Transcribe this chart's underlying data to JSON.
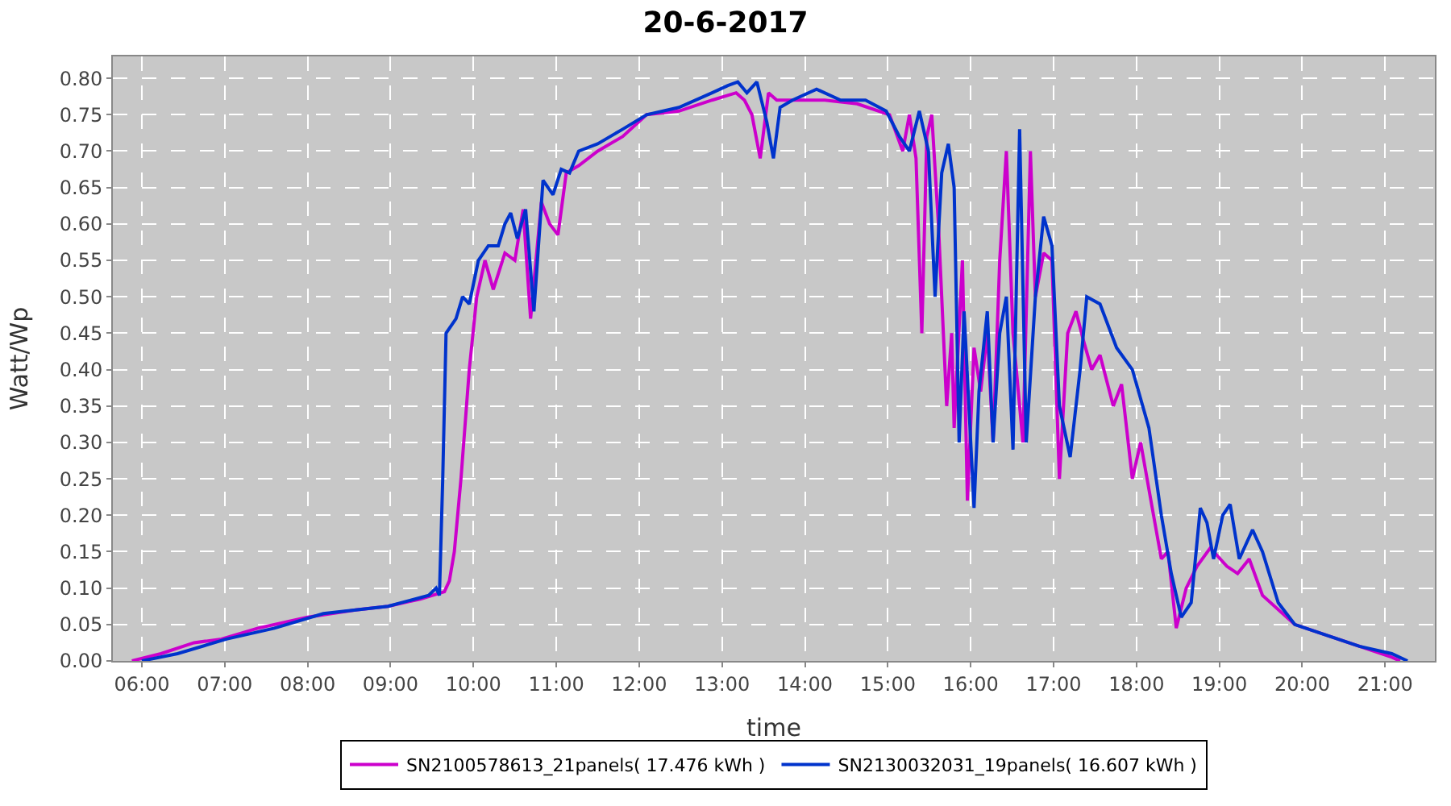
{
  "chart_data": {
    "type": "line",
    "title": "20-6-2017",
    "xlabel": "time",
    "ylabel": "Watt/Wp",
    "xlim": [
      5.65,
      21.6
    ],
    "xticks": [
      {
        "value": 6,
        "label": "06:00"
      },
      {
        "value": 7,
        "label": "07:00"
      },
      {
        "value": 8,
        "label": "08:00"
      },
      {
        "value": 9,
        "label": "09:00"
      },
      {
        "value": 10,
        "label": "10:00"
      },
      {
        "value": 11,
        "label": "11:00"
      },
      {
        "value": 12,
        "label": "12:00"
      },
      {
        "value": 13,
        "label": "13:00"
      },
      {
        "value": 14,
        "label": "14:00"
      },
      {
        "value": 15,
        "label": "15:00"
      },
      {
        "value": 16,
        "label": "16:00"
      },
      {
        "value": 17,
        "label": "17:00"
      },
      {
        "value": 18,
        "label": "18:00"
      },
      {
        "value": 19,
        "label": "19:00"
      },
      {
        "value": 20,
        "label": "20:00"
      },
      {
        "value": 21,
        "label": "21:00"
      }
    ],
    "ylim": [
      0,
      0.83
    ],
    "yticks": [
      {
        "value": 0,
        "label": "0.00"
      },
      {
        "value": 0.05,
        "label": "0.05"
      },
      {
        "value": 0.1,
        "label": "0.10"
      },
      {
        "value": 0.15,
        "label": "0.15"
      },
      {
        "value": 0.2,
        "label": "0.20"
      },
      {
        "value": 0.25,
        "label": "0.25"
      },
      {
        "value": 0.3,
        "label": "0.30"
      },
      {
        "value": 0.35,
        "label": "0.35"
      },
      {
        "value": 0.4,
        "label": "0.40"
      },
      {
        "value": 0.45,
        "label": "0.45"
      },
      {
        "value": 0.5,
        "label": "0.50"
      },
      {
        "value": 0.55,
        "label": "0.55"
      },
      {
        "value": 0.6,
        "label": "0.60"
      },
      {
        "value": 0.65,
        "label": "0.65"
      },
      {
        "value": 0.7,
        "label": "0.70"
      },
      {
        "value": 0.75,
        "label": "0.75"
      },
      {
        "value": 0.8,
        "label": "0.80"
      }
    ],
    "grid": true,
    "legend": "bottom",
    "marker": "none",
    "line_style": "solid",
    "series": [
      {
        "name": "SN2100578613_21panels( 17.476 kWh )",
        "color": "#cc00cc",
        "x": [
          5.88,
          6.23,
          6.63,
          6.96,
          7.4,
          8.0,
          8.58,
          8.97,
          9.36,
          9.65,
          9.71,
          9.77,
          9.85,
          9.95,
          10.04,
          10.14,
          10.24,
          10.38,
          10.5,
          10.6,
          10.69,
          10.82,
          10.92,
          11.02,
          11.12,
          11.27,
          11.5,
          11.8,
          12.09,
          12.48,
          12.88,
          13.17,
          13.27,
          13.36,
          13.46,
          13.56,
          13.66,
          13.85,
          14.24,
          14.63,
          15.02,
          15.18,
          15.26,
          15.34,
          15.41,
          15.47,
          15.53,
          15.61,
          15.71,
          15.77,
          15.8,
          15.9,
          15.96,
          16.04,
          16.12,
          16.2,
          16.27,
          16.35,
          16.43,
          16.51,
          16.63,
          16.72,
          16.78,
          16.88,
          16.98,
          17.07,
          17.17,
          17.27,
          17.36,
          17.46,
          17.56,
          17.72,
          17.82,
          17.95,
          18.05,
          18.19,
          18.3,
          18.38,
          18.48,
          18.6,
          18.73,
          18.89,
          19.09,
          19.22,
          19.36,
          19.52,
          19.91,
          20.3,
          20.69,
          21.08,
          21.18
        ],
        "values": [
          0.0,
          0.01,
          0.025,
          0.03,
          0.045,
          0.06,
          0.07,
          0.075,
          0.085,
          0.095,
          0.11,
          0.15,
          0.25,
          0.4,
          0.5,
          0.55,
          0.51,
          0.56,
          0.55,
          0.62,
          0.47,
          0.63,
          0.6,
          0.585,
          0.67,
          0.68,
          0.7,
          0.72,
          0.75,
          0.755,
          0.77,
          0.78,
          0.77,
          0.75,
          0.69,
          0.78,
          0.77,
          0.77,
          0.77,
          0.765,
          0.75,
          0.7,
          0.75,
          0.69,
          0.45,
          0.72,
          0.75,
          0.6,
          0.35,
          0.45,
          0.32,
          0.55,
          0.22,
          0.43,
          0.37,
          0.45,
          0.3,
          0.55,
          0.7,
          0.45,
          0.3,
          0.7,
          0.5,
          0.56,
          0.55,
          0.25,
          0.45,
          0.48,
          0.44,
          0.4,
          0.42,
          0.35,
          0.38,
          0.25,
          0.3,
          0.21,
          0.14,
          0.15,
          0.045,
          0.1,
          0.13,
          0.155,
          0.13,
          0.12,
          0.14,
          0.09,
          0.05,
          0.035,
          0.02,
          0.005,
          0.0
        ]
      },
      {
        "name": "SN2130032031_19panels( 16.607 kWh )",
        "color": "#0033cc",
        "x": [
          6.0,
          6.43,
          7.02,
          7.6,
          8.19,
          8.97,
          9.46,
          9.55,
          9.59,
          9.63,
          9.67,
          9.79,
          9.87,
          9.95,
          10.06,
          10.18,
          10.3,
          10.38,
          10.45,
          10.53,
          10.63,
          10.73,
          10.84,
          10.96,
          11.06,
          11.16,
          11.27,
          11.5,
          11.8,
          12.09,
          12.48,
          12.88,
          13.07,
          13.19,
          13.3,
          13.42,
          13.54,
          13.62,
          13.7,
          13.85,
          14.14,
          14.43,
          14.73,
          14.98,
          15.14,
          15.26,
          15.38,
          15.49,
          15.57,
          15.65,
          15.73,
          15.8,
          15.86,
          15.92,
          16.04,
          16.1,
          16.2,
          16.27,
          16.35,
          16.43,
          16.51,
          16.59,
          16.67,
          16.78,
          16.88,
          16.98,
          17.07,
          17.2,
          17.32,
          17.4,
          17.56,
          17.76,
          17.95,
          18.15,
          18.3,
          18.42,
          18.54,
          18.66,
          18.77,
          18.85,
          18.93,
          19.04,
          19.13,
          19.24,
          19.4,
          19.52,
          19.71,
          19.91,
          20.3,
          20.69,
          21.08,
          21.27
        ],
        "values": [
          0.0,
          0.01,
          0.03,
          0.045,
          0.065,
          0.075,
          0.09,
          0.1,
          0.09,
          0.25,
          0.45,
          0.47,
          0.5,
          0.49,
          0.55,
          0.57,
          0.57,
          0.6,
          0.615,
          0.58,
          0.62,
          0.48,
          0.66,
          0.64,
          0.675,
          0.67,
          0.7,
          0.71,
          0.73,
          0.75,
          0.76,
          0.78,
          0.79,
          0.795,
          0.78,
          0.795,
          0.74,
          0.69,
          0.76,
          0.77,
          0.785,
          0.77,
          0.77,
          0.755,
          0.72,
          0.7,
          0.755,
          0.7,
          0.5,
          0.67,
          0.71,
          0.65,
          0.3,
          0.48,
          0.21,
          0.37,
          0.48,
          0.3,
          0.45,
          0.5,
          0.29,
          0.73,
          0.3,
          0.5,
          0.61,
          0.57,
          0.35,
          0.28,
          0.4,
          0.5,
          0.49,
          0.43,
          0.4,
          0.32,
          0.2,
          0.12,
          0.06,
          0.08,
          0.21,
          0.19,
          0.14,
          0.2,
          0.215,
          0.14,
          0.18,
          0.15,
          0.08,
          0.05,
          0.035,
          0.02,
          0.01,
          0.0
        ]
      }
    ]
  }
}
